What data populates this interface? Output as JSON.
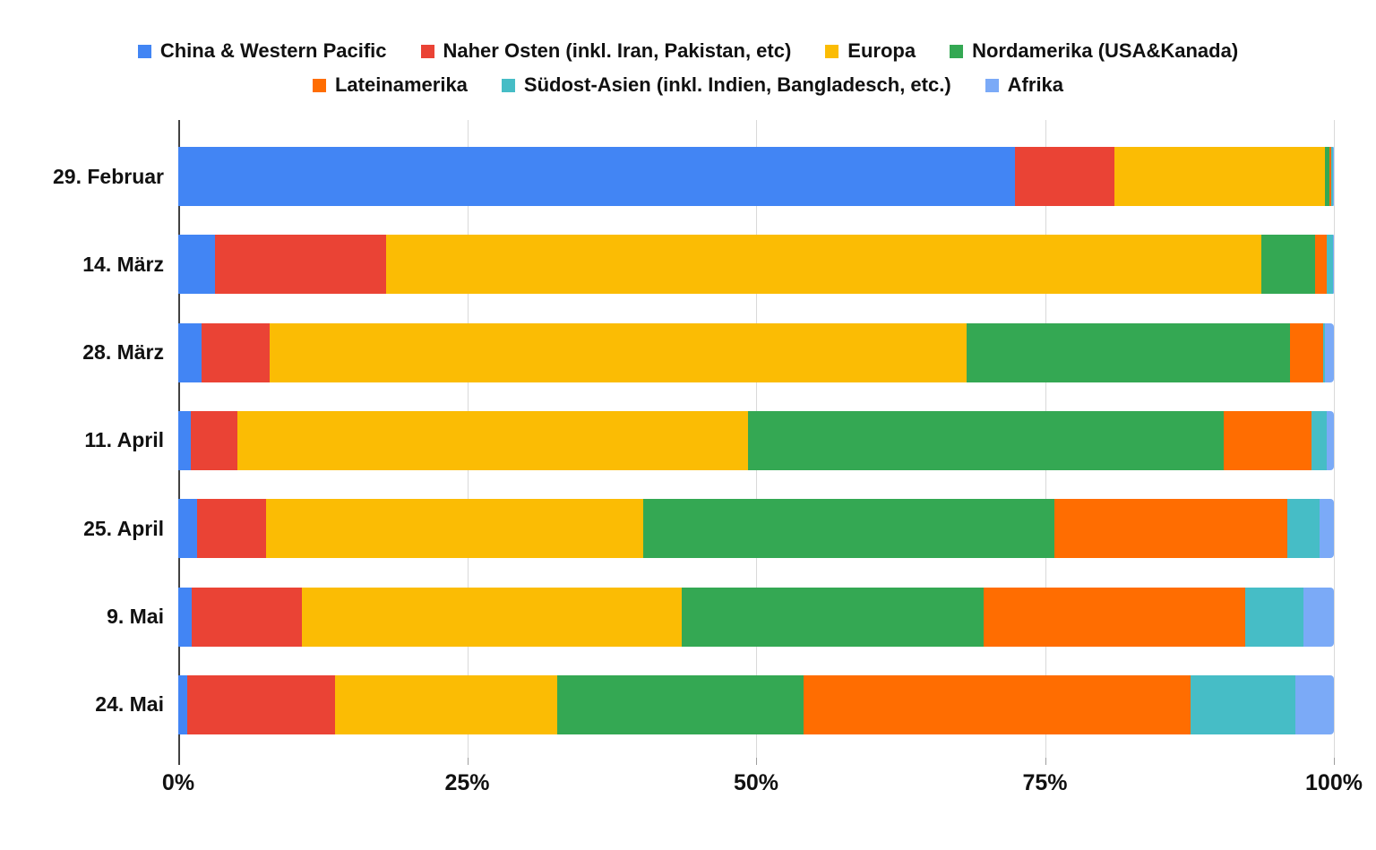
{
  "chart_data": {
    "type": "bar",
    "orientation": "horizontal",
    "stacked": true,
    "unit": "percent",
    "title": "",
    "xlabel": "",
    "ylabel": "",
    "xlim": [
      0,
      100
    ],
    "grid": true,
    "legend_position": "top",
    "categories": [
      "29. Februar",
      "14. März",
      "28. März",
      "11. April",
      "25. April",
      "9. Mai",
      "24. Mai"
    ],
    "series": [
      {
        "name": "China & Western Pacific",
        "color": "#4285F4",
        "values": [
          72.4,
          3.2,
          2.0,
          1.1,
          1.6,
          1.2,
          0.8
        ]
      },
      {
        "name": "Naher Osten (inkl. Iran, Pakistan, etc)",
        "color": "#EA4335",
        "values": [
          8.6,
          14.8,
          5.9,
          4.0,
          6.0,
          9.5,
          12.8
        ]
      },
      {
        "name": "Europa",
        "color": "#FBBC04",
        "values": [
          18.2,
          75.7,
          60.3,
          44.2,
          32.6,
          32.9,
          19.2
        ]
      },
      {
        "name": "Nordamerika (USA&Kanada)",
        "color": "#34A853",
        "values": [
          0.4,
          4.7,
          28.0,
          41.2,
          35.6,
          26.1,
          21.3
        ]
      },
      {
        "name": "Lateinamerika",
        "color": "#FF6D01",
        "values": [
          0.2,
          1.0,
          2.9,
          7.6,
          20.2,
          22.6,
          33.5
        ]
      },
      {
        "name": "Südost-Asien (inkl. Indien, Bangladesch, etc.)",
        "color": "#46BDC6",
        "values": [
          0.1,
          0.5,
          0.1,
          1.3,
          2.8,
          5.1,
          9.1
        ]
      },
      {
        "name": "Afrika",
        "color": "#7BAAF7",
        "values": [
          0.1,
          0.1,
          0.8,
          0.6,
          1.2,
          2.6,
          3.3
        ]
      }
    ],
    "x_axis_ticks": [
      "0%",
      "25%",
      "50%",
      "75%",
      "100%"
    ],
    "x_axis_tick_values": [
      0,
      25,
      50,
      75,
      100
    ]
  },
  "axis_colors": {
    "gridline": "#d9d9d9",
    "zero_axis": "#424242",
    "text": "#111111"
  }
}
